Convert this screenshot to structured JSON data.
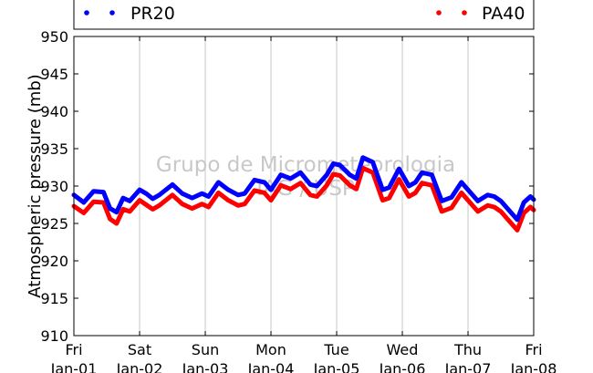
{
  "chart_data": {
    "type": "line",
    "title": "",
    "xlabel": "",
    "ylabel": "Atmospheric pressure (mb)",
    "ylim": [
      910,
      950
    ],
    "yticks": [
      910,
      915,
      920,
      925,
      930,
      935,
      940,
      945,
      950
    ],
    "xlim": [
      0,
      7
    ],
    "grid": "vertical",
    "legend_position": "top",
    "xtick_labels": [
      {
        "day": "Fri",
        "date": "Jan-01"
      },
      {
        "day": "Sat",
        "date": "Jan-02"
      },
      {
        "day": "Sun",
        "date": "Jan-03"
      },
      {
        "day": "Mon",
        "date": "Jan-04"
      },
      {
        "day": "Tue",
        "date": "Jan-05"
      },
      {
        "day": "Wed",
        "date": "Jan-06"
      },
      {
        "day": "Thu",
        "date": "Jan-07"
      },
      {
        "day": "Fri",
        "date": "Jan-08"
      }
    ],
    "series": [
      {
        "name": "PR20",
        "color": "#0000ff",
        "x": [
          0.0,
          0.15,
          0.3,
          0.45,
          0.55,
          0.65,
          0.75,
          0.85,
          1.0,
          1.1,
          1.2,
          1.3,
          1.5,
          1.65,
          1.8,
          1.95,
          2.05,
          2.2,
          2.35,
          2.5,
          2.6,
          2.75,
          2.9,
          3.0,
          3.15,
          3.3,
          3.45,
          3.6,
          3.7,
          3.85,
          3.95,
          4.05,
          4.2,
          4.3,
          4.4,
          4.55,
          4.7,
          4.8,
          4.95,
          5.1,
          5.2,
          5.3,
          5.45,
          5.6,
          5.75,
          5.9,
          6.0,
          6.15,
          6.3,
          6.4,
          6.5,
          6.6,
          6.75,
          6.85,
          6.95,
          7.0
        ],
        "y": [
          928.8,
          927.8,
          929.3,
          929.2,
          927.0,
          926.5,
          928.4,
          928.0,
          929.5,
          929.0,
          928.3,
          928.8,
          930.2,
          929.0,
          928.4,
          929.0,
          928.6,
          930.5,
          929.5,
          928.8,
          929.0,
          930.8,
          930.5,
          929.5,
          931.5,
          931.0,
          931.8,
          930.2,
          930.0,
          931.5,
          933.0,
          932.8,
          931.5,
          931.0,
          933.8,
          933.2,
          929.5,
          929.8,
          932.3,
          930.0,
          930.5,
          931.8,
          931.5,
          928.0,
          928.5,
          930.5,
          929.5,
          928.0,
          928.8,
          928.6,
          928.0,
          927.0,
          925.5,
          927.8,
          928.6,
          928.2
        ]
      },
      {
        "name": "PA40",
        "color": "#ff0000",
        "x": [
          0.0,
          0.15,
          0.3,
          0.45,
          0.55,
          0.65,
          0.75,
          0.85,
          1.0,
          1.1,
          1.2,
          1.3,
          1.5,
          1.65,
          1.8,
          1.95,
          2.05,
          2.2,
          2.35,
          2.5,
          2.6,
          2.75,
          2.9,
          3.0,
          3.15,
          3.3,
          3.45,
          3.6,
          3.7,
          3.85,
          3.95,
          4.05,
          4.2,
          4.3,
          4.4,
          4.55,
          4.7,
          4.8,
          4.95,
          5.1,
          5.2,
          5.3,
          5.45,
          5.6,
          5.75,
          5.9,
          6.0,
          6.15,
          6.3,
          6.4,
          6.5,
          6.6,
          6.75,
          6.85,
          6.95,
          7.0
        ],
        "y": [
          927.3,
          926.4,
          927.9,
          927.8,
          925.6,
          925.0,
          926.9,
          926.6,
          928.1,
          927.5,
          926.9,
          927.4,
          928.8,
          927.6,
          927.0,
          927.6,
          927.2,
          929.1,
          928.1,
          927.4,
          927.6,
          929.4,
          929.1,
          928.1,
          930.1,
          929.6,
          930.4,
          928.8,
          928.6,
          930.1,
          931.6,
          931.4,
          930.1,
          929.6,
          932.4,
          931.8,
          928.1,
          928.4,
          930.9,
          928.6,
          929.1,
          930.4,
          930.1,
          926.6,
          927.1,
          929.1,
          928.1,
          926.6,
          927.4,
          927.2,
          926.6,
          925.6,
          924.1,
          926.4,
          927.2,
          926.8
        ]
      }
    ],
    "watermark": [
      "Grupo de Micrometeorologia",
      "IAG / USP"
    ]
  }
}
